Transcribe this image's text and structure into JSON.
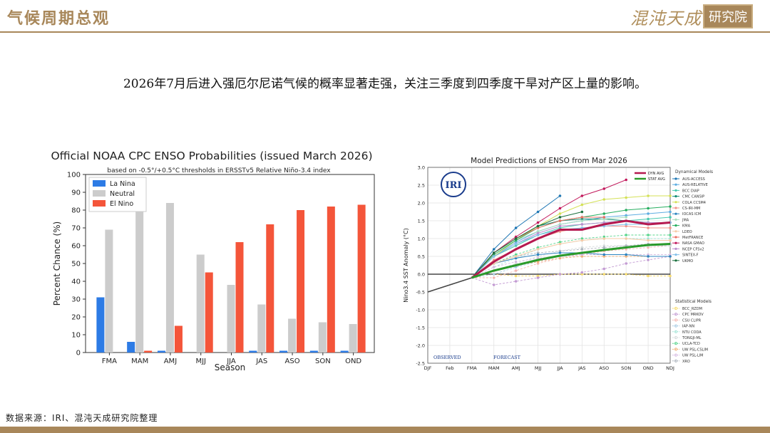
{
  "header": {
    "title": "气候周期总观",
    "logo_script": "混沌天成",
    "logo_box": "研究院"
  },
  "subtitle": "2026年7月后进入强厄尔尼诺气候的概率显著走强，关注三季度到四季度干旱对产区上量的影响。",
  "source": "数据来源：IRI、混沌天成研究院整理",
  "colors": {
    "gold": "#a8875a",
    "la_nina": "#2d7be5",
    "neutral": "#cccccc",
    "el_nino": "#f4553a"
  },
  "chart_data": [
    {
      "type": "bar",
      "title": "Official NOAA CPC ENSO Probabilities (issued March 2026)",
      "subtitle": "based on -0.5°/+0.5°C thresholds in ERSSTv5 Relative Niño-3.4 index",
      "xlabel": "Season",
      "ylabel": "Percent Chance (%)",
      "ylim": [
        0,
        100
      ],
      "yticks": [
        0,
        10,
        20,
        30,
        40,
        50,
        60,
        70,
        80,
        90,
        100
      ],
      "categories": [
        "FMA",
        "MAM",
        "AMJ",
        "MJJ",
        "JJA",
        "JAS",
        "ASO",
        "SON",
        "OND"
      ],
      "legend_position": "top-left",
      "series": [
        {
          "name": "La Nina",
          "color": "#2d7be5",
          "values": [
            31,
            6,
            1,
            0,
            0,
            1,
            1,
            1,
            1
          ]
        },
        {
          "name": "Neutral",
          "color": "#cccccc",
          "values": [
            69,
            93,
            84,
            55,
            38,
            27,
            19,
            17,
            16
          ]
        },
        {
          "name": "El Nino",
          "color": "#f4553a",
          "values": [
            0,
            1,
            15,
            45,
            62,
            72,
            80,
            82,
            83
          ]
        }
      ]
    },
    {
      "type": "line",
      "title": "Model Predictions of ENSO from Mar 2026",
      "xlabel": "",
      "ylabel": "Nino3.4 SST Anomaly (°C)",
      "ylim": [
        -2.5,
        3.0
      ],
      "yticks": [
        -2.5,
        -2.0,
        -1.5,
        -1.0,
        -0.5,
        0.0,
        0.5,
        1.0,
        1.5,
        2.0,
        2.5,
        3.0
      ],
      "categories": [
        "DJF",
        "Feb",
        "FMA",
        "MAM",
        "AMJ",
        "MJJ",
        "JJA",
        "JAS",
        "ASO",
        "SON",
        "OND",
        "NDJ"
      ],
      "observed_label": "OBSERVED",
      "forecast_label": "FORECAST",
      "badge": "IRI",
      "observed": [
        -0.5,
        -0.3,
        -0.1
      ],
      "series": [
        {
          "name": "DYN AVG",
          "color": "#b5194f",
          "values": [
            null,
            null,
            null,
            0.35,
            0.7,
            1.0,
            1.25,
            1.25,
            1.4,
            1.5,
            1.4,
            1.45
          ]
        },
        {
          "name": "STAT AVG",
          "color": "#2a9a2a",
          "values": [
            null,
            null,
            null,
            0.1,
            0.25,
            0.4,
            0.52,
            0.6,
            0.68,
            0.75,
            0.82,
            0.85
          ]
        }
      ],
      "dynamical_title": "Dynamical Models",
      "dynamical_models": [
        {
          "name": "AUS-ACCESS",
          "color": "#1f77b4",
          "values": [
            null,
            null,
            null,
            0.7,
            1.3,
            1.75,
            2.2
          ]
        },
        {
          "name": "AUS-RELATIVE",
          "color": "#5dade2",
          "values": [
            null,
            null,
            null,
            0.5,
            0.9,
            1.2,
            1.4,
            1.5,
            1.6,
            1.65,
            1.7,
            1.75
          ]
        },
        {
          "name": "BCC DIAP",
          "color": "#48c9b0",
          "values": [
            null,
            null,
            null,
            0.5,
            0.8,
            1.1,
            1.3,
            1.4,
            1.45,
            1.5,
            1.55,
            1.6
          ]
        },
        {
          "name": "CMC CANSIP",
          "color": "#138d75",
          "values": [
            null,
            null,
            null,
            0.6,
            1.0,
            1.35,
            1.5,
            1.55,
            1.55,
            1.5,
            1.45,
            1.45
          ]
        },
        {
          "name": "COLA CCSM4",
          "color": "#d4e157",
          "values": [
            null,
            null,
            null,
            0.5,
            0.95,
            1.35,
            1.7,
            1.95,
            2.1,
            2.15,
            2.2,
            2.2
          ]
        },
        {
          "name": "CS-IRI-MM",
          "color": "#f1948a",
          "values": [
            null,
            null,
            null,
            0.4,
            0.7,
            1.0,
            1.2,
            1.3,
            1.35,
            1.35,
            1.3,
            1.3
          ]
        },
        {
          "name": "IOCAS ICM",
          "color": "#2e86c1",
          "values": [
            null,
            null,
            null,
            0.3,
            0.45,
            0.55,
            0.6,
            0.6,
            0.55,
            0.55,
            0.5,
            0.5
          ]
        },
        {
          "name": "JMA",
          "color": "#a9dfbf",
          "values": [
            null,
            null,
            null,
            0.6,
            0.95,
            1.2,
            1.4,
            1.5,
            1.55,
            1.6
          ]
        },
        {
          "name": "KMA",
          "color": "#27ae60",
          "values": [
            null,
            null,
            null,
            0.55,
            0.95,
            1.3,
            1.5,
            1.6,
            1.7,
            1.8,
            1.85,
            1.9
          ]
        },
        {
          "name": "LDEO",
          "color": "#f5cba7",
          "values": [
            null,
            null,
            null,
            0.3,
            0.5,
            0.7,
            0.85,
            0.95,
            1.0,
            1.0,
            0.95,
            0.95
          ]
        },
        {
          "name": "MetFRANCE",
          "color": "#ec7063",
          "values": [
            null,
            null,
            null,
            0.6,
            1.0,
            1.3,
            1.5,
            1.6,
            1.6
          ]
        },
        {
          "name": "NASA GMAO",
          "color": "#c2185b",
          "values": [
            null,
            null,
            null,
            0.6,
            1.05,
            1.45,
            1.85,
            2.2,
            2.4,
            2.65
          ]
        },
        {
          "name": "NCEP CFSv2",
          "color": "#bb8fce",
          "values": [
            null,
            null,
            null,
            0.5,
            0.85,
            1.15,
            1.35,
            1.4,
            1.45,
            1.5,
            1.45,
            1.45
          ]
        },
        {
          "name": "SINTEX-F",
          "color": "#85c1e9",
          "values": [
            null,
            null,
            null,
            0.5,
            0.85,
            1.1,
            1.25,
            1.3,
            1.35,
            1.4,
            1.4,
            1.45
          ]
        },
        {
          "name": "UKMO",
          "color": "#196f3d",
          "values": [
            null,
            null,
            null,
            0.6,
            1.0,
            1.35,
            1.6,
            1.75
          ]
        }
      ],
      "statistical_title": "Statistical Models",
      "statistical_models": [
        {
          "name": "BCC_RZDM",
          "color": "#f7dc6f",
          "values": [
            null,
            null,
            null,
            0.0,
            -0.05,
            -0.05,
            0.0,
            0.0,
            0.0,
            0.0,
            -0.05,
            -0.05
          ]
        },
        {
          "name": "CPC MRKOV",
          "color": "#c39bd3",
          "values": [
            null,
            null,
            null,
            -0.3,
            -0.2,
            -0.1,
            0.0,
            0.05,
            0.15,
            0.3,
            0.4,
            0.5
          ]
        },
        {
          "name": "CSU CLIPR",
          "color": "#f5b7b1",
          "values": [
            null,
            null,
            null,
            -0.1,
            0.1,
            0.3,
            0.45,
            0.55,
            0.65,
            0.7,
            0.75,
            0.8
          ]
        },
        {
          "name": "IAP-NN",
          "color": "#a9cce3",
          "values": [
            null,
            null,
            null,
            0.0,
            0.2,
            0.35,
            0.5,
            0.6,
            0.7,
            0.75,
            0.8,
            0.8
          ]
        },
        {
          "name": "NTU CODA",
          "color": "#a3e4d7",
          "values": [
            null,
            null,
            null,
            0.2,
            0.45,
            0.7,
            0.85,
            0.95,
            1.0,
            1.0,
            1.0,
            1.0
          ]
        },
        {
          "name": "TONGJI-ML",
          "color": "#d5dbdb",
          "values": [
            null,
            null,
            null,
            0.1,
            0.3,
            0.5,
            0.65,
            0.75,
            0.8,
            0.8,
            0.8,
            0.8
          ]
        },
        {
          "name": "UCLA-TCD",
          "color": "#58d68d",
          "values": [
            null,
            null,
            null,
            0.3,
            0.55,
            0.75,
            0.9,
            1.0,
            1.05,
            1.1,
            1.1,
            1.1
          ]
        },
        {
          "name": "UW PSL-CSLIM",
          "color": "#f0b27a",
          "values": [
            null,
            null,
            null,
            0.1,
            0.25,
            0.35,
            0.45,
            0.5,
            0.5,
            0.5,
            0.5,
            0.5
          ]
        },
        {
          "name": "UW PSL-LIM",
          "color": "#d7bde2",
          "values": [
            null,
            null,
            null,
            0.2,
            0.35,
            0.45,
            0.5,
            0.55,
            0.55,
            0.55,
            0.55,
            0.55
          ]
        },
        {
          "name": "XRO",
          "color": "#aeb6bf",
          "values": [
            null,
            null,
            null,
            0.3,
            0.5,
            0.6,
            0.65,
            0.7,
            0.75,
            0.8,
            0.85,
            0.85
          ]
        }
      ]
    }
  ]
}
